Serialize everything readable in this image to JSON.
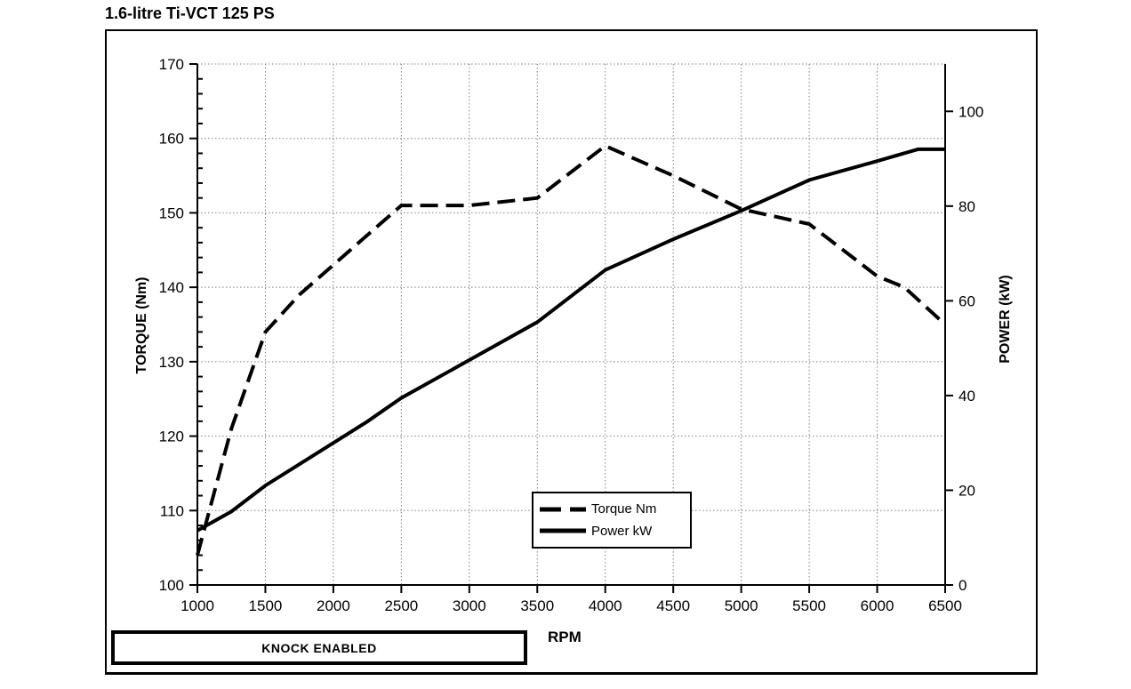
{
  "page": {
    "title": "1.6-litre Ti-VCT 125 PS",
    "background": "#ffffff"
  },
  "chart_data": {
    "type": "line",
    "title": "1.6-litre Ti-VCT 125 PS",
    "xlabel": "RPM",
    "ylabel_left": "TORQUE (Nm)",
    "ylabel_right": "POWER (kW)",
    "xlim": [
      1000,
      6500
    ],
    "ylim_left": [
      100,
      170
    ],
    "ylim_right": [
      0,
      110
    ],
    "x_ticks": [
      1000,
      1500,
      2000,
      2500,
      3000,
      3500,
      4000,
      4500,
      5000,
      5500,
      6000,
      6500
    ],
    "y_ticks_left": [
      100,
      110,
      120,
      130,
      140,
      150,
      160,
      170
    ],
    "y_ticks_right": [
      0,
      20,
      40,
      60,
      80,
      100
    ],
    "minor_tick_step_left": 2,
    "grid": true,
    "grid_style": "dotted",
    "legend_position": "inside-lower-middle",
    "line_color": "#000000",
    "grid_color": "#808080",
    "series": [
      {
        "name": "Torque Nm",
        "axis": "left",
        "line_style": "dashed",
        "x": [
          1000,
          1250,
          1500,
          1750,
          2000,
          2250,
          2500,
          3000,
          3500,
          4000,
          4500,
          5000,
          5500,
          6000,
          6200,
          6500
        ],
        "values": [
          104,
          121,
          134,
          139,
          143,
          147,
          151,
          151,
          152,
          159,
          155,
          150.5,
          148.5,
          141.5,
          140,
          135
        ]
      },
      {
        "name": "Power kW",
        "axis": "right",
        "line_style": "solid",
        "x": [
          1000,
          1250,
          1500,
          1750,
          2000,
          2250,
          2500,
          3000,
          3500,
          4000,
          4500,
          5000,
          5500,
          6000,
          6300,
          6500
        ],
        "values": [
          11.5,
          15.5,
          21,
          25.5,
          30,
          34.5,
          39.5,
          47.5,
          55.5,
          66.5,
          73,
          79,
          85.5,
          89.5,
          92,
          92
        ]
      }
    ]
  },
  "annotations": {
    "knock_label": "KNOCK ENABLED"
  }
}
